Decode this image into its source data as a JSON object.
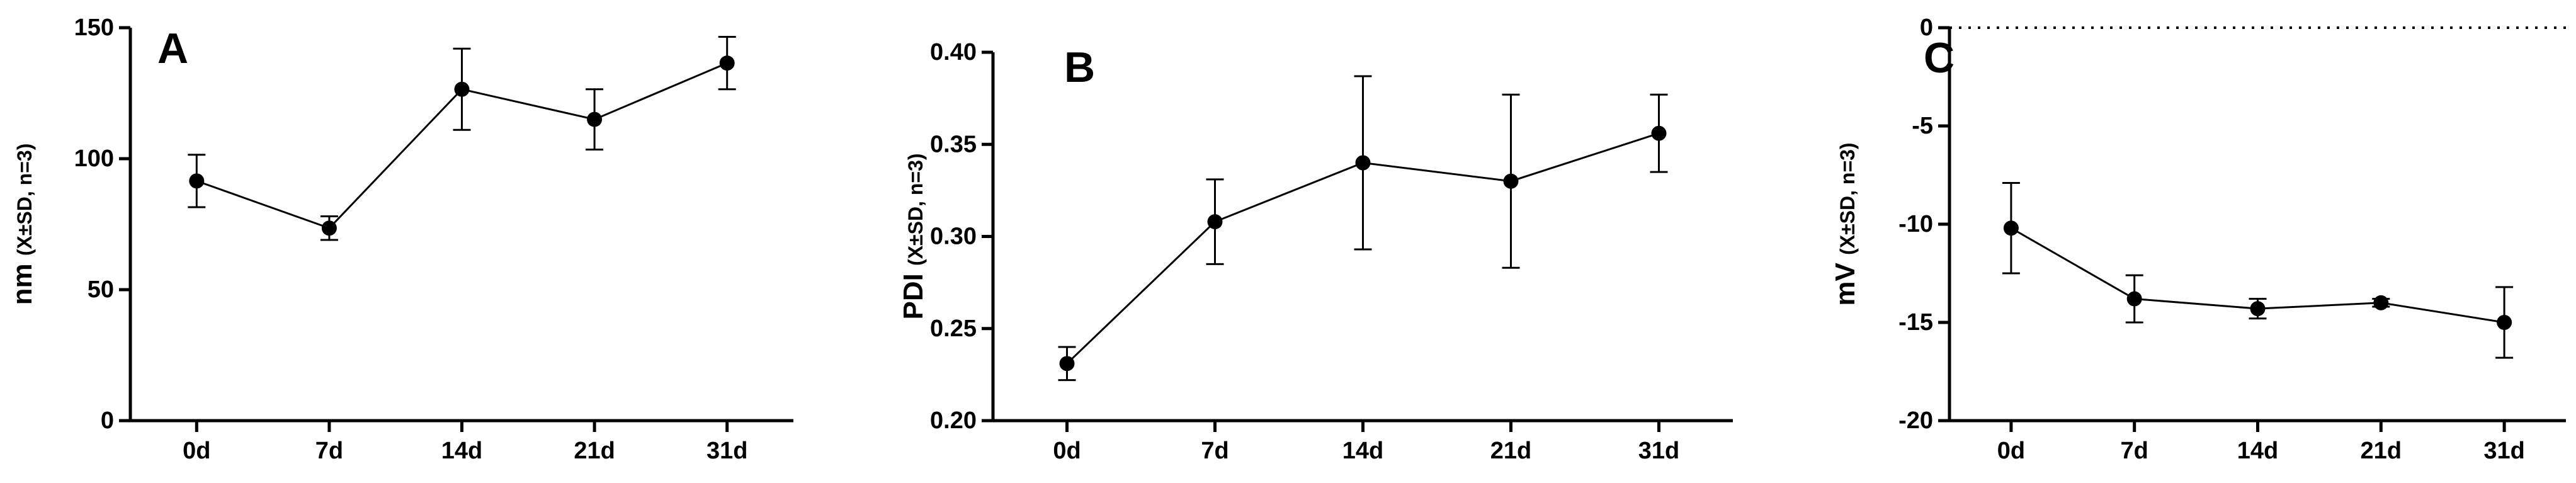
{
  "chart_data": [
    {
      "type": "line",
      "panel_label": "A",
      "ylabel": "nm",
      "ylabel_note": "(X±SD, n=3)",
      "xlabel": "",
      "categories": [
        "0d",
        "7d",
        "14d",
        "21d",
        "31d"
      ],
      "yticks": [
        0,
        50,
        100,
        150
      ],
      "ylim": [
        0,
        150
      ],
      "series": [
        {
          "values": [
            91.5,
            73.5,
            126.5,
            115,
            136.5
          ],
          "errors": [
            10,
            4.5,
            15.5,
            11.5,
            10
          ]
        }
      ],
      "grid": false,
      "legend": false
    },
    {
      "type": "line",
      "panel_label": "B",
      "ylabel": "PDI",
      "ylabel_note": "(X±SD, n=3)",
      "xlabel": "",
      "categories": [
        "0d",
        "7d",
        "14d",
        "21d",
        "31d"
      ],
      "yticks": [
        "0.20",
        "0.25",
        "0.30",
        "0.35",
        "0.40"
      ],
      "ylim": [
        0.2,
        0.4
      ],
      "series": [
        {
          "values": [
            0.231,
            0.308,
            0.34,
            0.33,
            0.356
          ],
          "errors": [
            0.009,
            0.023,
            0.047,
            0.047,
            0.021
          ]
        }
      ],
      "grid": false,
      "legend": false
    },
    {
      "type": "line",
      "panel_label": "C",
      "ylabel": "mV",
      "ylabel_note": "(X±SD, n=3)",
      "xlabel": "",
      "categories": [
        "0d",
        "7d",
        "14d",
        "21d",
        "31d"
      ],
      "yticks": [
        -20,
        -15,
        -10,
        -5,
        0
      ],
      "ylim": [
        -20,
        0
      ],
      "reference_line": {
        "y": 0,
        "style": "dotted"
      },
      "series": [
        {
          "values": [
            -10.2,
            -13.8,
            -14.3,
            -14,
            -15
          ],
          "errors": [
            2.3,
            1.2,
            0.5,
            0.2,
            1.8
          ]
        }
      ],
      "grid": false,
      "legend": false
    }
  ]
}
